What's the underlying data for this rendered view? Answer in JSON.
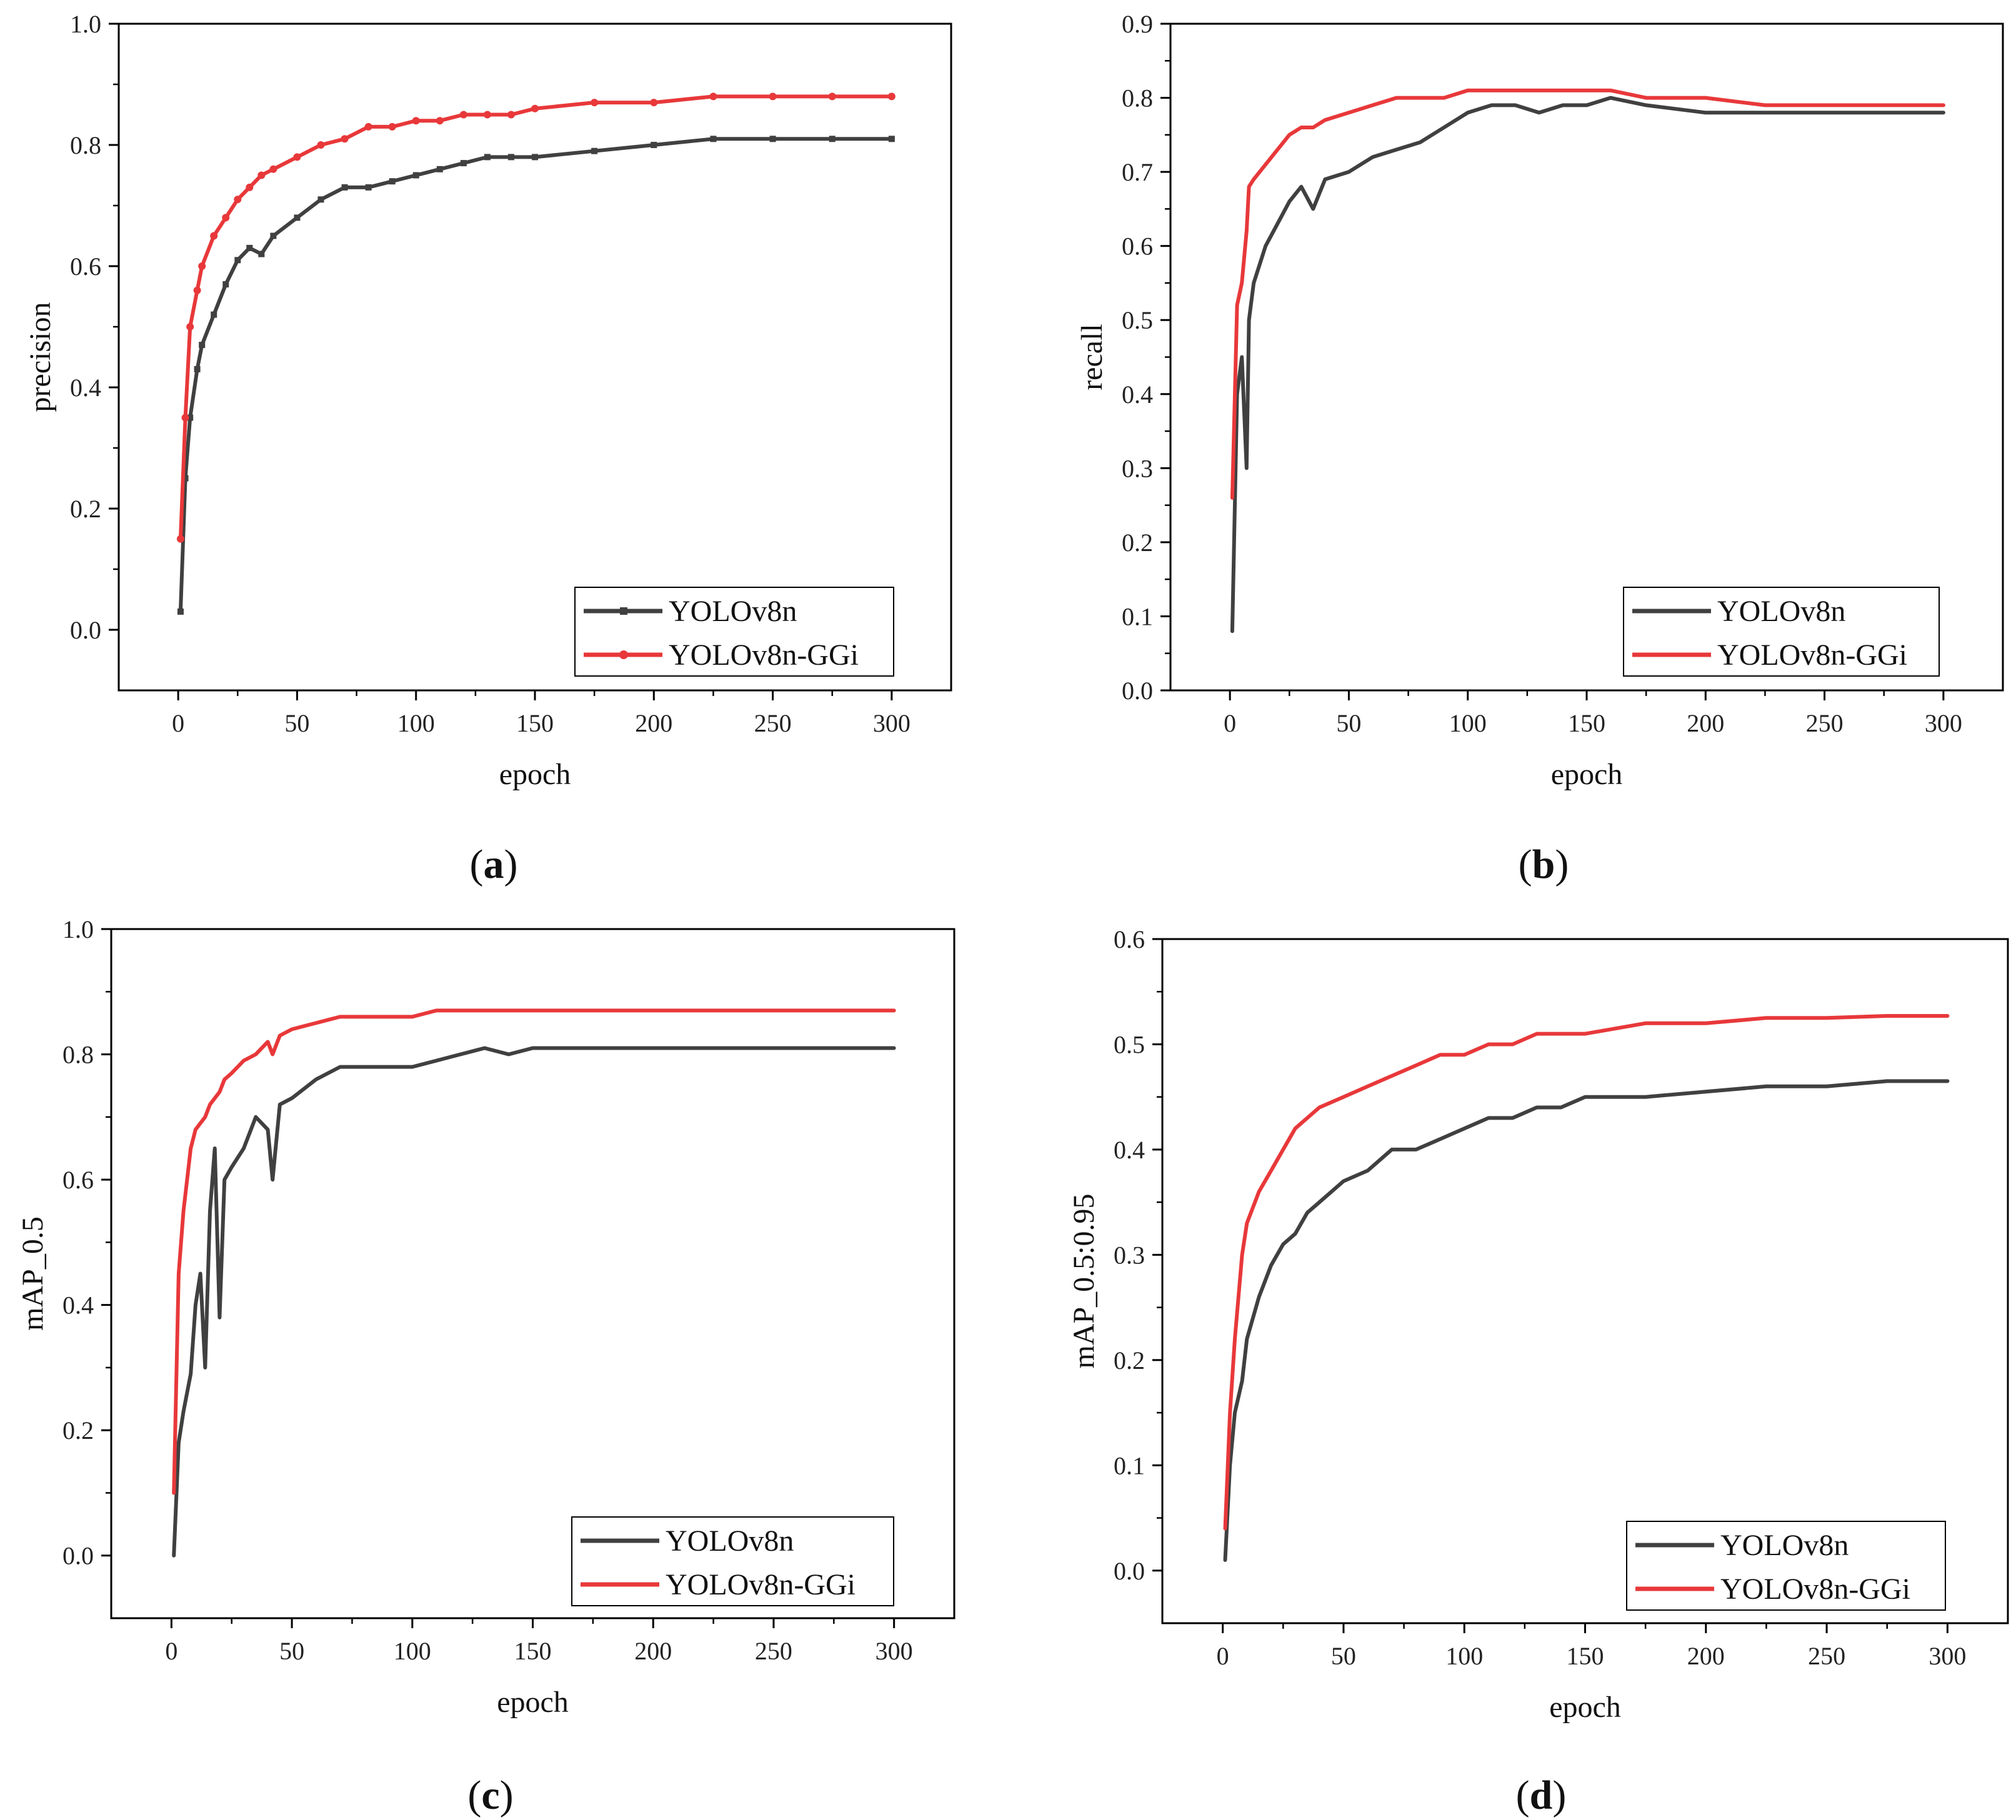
{
  "colors": {
    "yolov8n": "#404040",
    "yolov8n_ggi": "#e8383a"
  },
  "chart_data": [
    {
      "type": "line",
      "caption": "a",
      "xlabel": "epoch",
      "ylabel": "precision",
      "xlim": [
        -25,
        325
      ],
      "ylim": [
        -0.1,
        1.0
      ],
      "xticks": [
        0,
        50,
        100,
        150,
        200,
        250,
        300
      ],
      "yticks": [
        0.0,
        0.2,
        0.4,
        0.6,
        0.8,
        1.0
      ],
      "xticklabels": [
        "0",
        "50",
        "100",
        "150",
        "200",
        "250",
        "300"
      ],
      "yticklabels": [
        "0.0",
        "0.2",
        "0.4",
        "0.6",
        "0.8",
        "1.0"
      ],
      "legend": {
        "position": "bottom-right",
        "entries": [
          "YOLOv8n",
          "YOLOv8n-GGi"
        ]
      },
      "markers": true,
      "x": [
        1,
        3,
        5,
        8,
        10,
        15,
        20,
        25,
        30,
        35,
        40,
        50,
        60,
        70,
        80,
        90,
        100,
        110,
        120,
        130,
        140,
        150,
        175,
        200,
        225,
        250,
        275,
        300
      ],
      "series": [
        {
          "name": "YOLOv8n",
          "values": [
            0.03,
            0.25,
            0.35,
            0.43,
            0.47,
            0.52,
            0.57,
            0.61,
            0.63,
            0.62,
            0.65,
            0.68,
            0.71,
            0.73,
            0.73,
            0.74,
            0.75,
            0.76,
            0.77,
            0.78,
            0.78,
            0.78,
            0.79,
            0.8,
            0.81,
            0.81,
            0.81,
            0.81
          ]
        },
        {
          "name": "YOLOv8n-GGi",
          "values": [
            0.15,
            0.35,
            0.5,
            0.56,
            0.6,
            0.65,
            0.68,
            0.71,
            0.73,
            0.75,
            0.76,
            0.78,
            0.8,
            0.81,
            0.83,
            0.83,
            0.84,
            0.84,
            0.85,
            0.85,
            0.85,
            0.86,
            0.87,
            0.87,
            0.88,
            0.88,
            0.88,
            0.88
          ]
        }
      ]
    },
    {
      "type": "line",
      "caption": "b",
      "xlabel": "epoch",
      "ylabel": "recall",
      "xlim": [
        -25,
        325
      ],
      "ylim": [
        0.0,
        0.9
      ],
      "xticks": [
        0,
        50,
        100,
        150,
        200,
        250,
        300
      ],
      "yticks": [
        0.0,
        0.1,
        0.2,
        0.3,
        0.4,
        0.5,
        0.6,
        0.7,
        0.8,
        0.9
      ],
      "xticklabels": [
        "0",
        "50",
        "100",
        "150",
        "200",
        "250",
        "300"
      ],
      "yticklabels": [
        "0.0",
        "0.1",
        "0.2",
        "0.3",
        "0.4",
        "0.5",
        "0.6",
        "0.7",
        "0.8",
        "0.9"
      ],
      "legend": {
        "position": "bottom-right",
        "entries": [
          "YOLOv8n",
          "YOLOv8n-GGi"
        ]
      },
      "markers": false,
      "x": [
        1,
        3,
        5,
        7,
        8,
        10,
        15,
        20,
        25,
        30,
        35,
        40,
        50,
        60,
        70,
        80,
        90,
        100,
        110,
        120,
        130,
        140,
        150,
        160,
        175,
        200,
        225,
        250,
        275,
        300
      ],
      "series": [
        {
          "name": "YOLOv8n",
          "values": [
            0.08,
            0.4,
            0.45,
            0.3,
            0.5,
            0.55,
            0.6,
            0.63,
            0.66,
            0.68,
            0.65,
            0.69,
            0.7,
            0.72,
            0.73,
            0.74,
            0.76,
            0.78,
            0.79,
            0.79,
            0.78,
            0.79,
            0.79,
            0.8,
            0.79,
            0.78,
            0.78,
            0.78,
            0.78,
            0.78
          ]
        },
        {
          "name": "YOLOv8n-GGi",
          "values": [
            0.26,
            0.52,
            0.55,
            0.62,
            0.68,
            0.69,
            0.71,
            0.73,
            0.75,
            0.76,
            0.76,
            0.77,
            0.78,
            0.79,
            0.8,
            0.8,
            0.8,
            0.81,
            0.81,
            0.81,
            0.81,
            0.81,
            0.81,
            0.81,
            0.8,
            0.8,
            0.79,
            0.79,
            0.79,
            0.79
          ]
        }
      ]
    },
    {
      "type": "line",
      "caption": "c",
      "xlabel": "epoch",
      "ylabel": "mAP_0.5",
      "xlim": [
        -25,
        325
      ],
      "ylim": [
        -0.1,
        1.0
      ],
      "xticks": [
        0,
        50,
        100,
        150,
        200,
        250,
        300
      ],
      "yticks": [
        0.0,
        0.2,
        0.4,
        0.6,
        0.8,
        1.0
      ],
      "xticklabels": [
        "0",
        "50",
        "100",
        "150",
        "200",
        "250",
        "300"
      ],
      "yticklabels": [
        "0.0",
        "0.2",
        "0.4",
        "0.6",
        "0.8",
        "1.0"
      ],
      "legend": {
        "position": "bottom-right",
        "entries": [
          "YOLOv8n",
          "YOLOv8n-GGi"
        ]
      },
      "markers": false,
      "x": [
        1,
        3,
        5,
        8,
        10,
        12,
        14,
        16,
        18,
        20,
        22,
        25,
        30,
        35,
        40,
        42,
        45,
        50,
        60,
        70,
        80,
        90,
        100,
        110,
        120,
        130,
        140,
        150,
        175,
        200,
        250,
        300
      ],
      "series": [
        {
          "name": "YOLOv8n",
          "values": [
            0.0,
            0.18,
            0.23,
            0.29,
            0.4,
            0.45,
            0.3,
            0.55,
            0.65,
            0.38,
            0.6,
            0.62,
            0.65,
            0.7,
            0.68,
            0.6,
            0.72,
            0.73,
            0.76,
            0.78,
            0.78,
            0.78,
            0.78,
            0.79,
            0.8,
            0.81,
            0.8,
            0.81,
            0.81,
            0.81,
            0.81,
            0.81
          ]
        },
        {
          "name": "YOLOv8n-GGi",
          "values": [
            0.1,
            0.45,
            0.55,
            0.65,
            0.68,
            0.69,
            0.7,
            0.72,
            0.73,
            0.74,
            0.76,
            0.77,
            0.79,
            0.8,
            0.82,
            0.8,
            0.83,
            0.84,
            0.85,
            0.86,
            0.86,
            0.86,
            0.86,
            0.87,
            0.87,
            0.87,
            0.87,
            0.87,
            0.87,
            0.87,
            0.87,
            0.87
          ]
        }
      ]
    },
    {
      "type": "line",
      "caption": "d",
      "xlabel": "epoch",
      "ylabel": "mAP_0.5:0.95",
      "xlim": [
        -25,
        325
      ],
      "ylim": [
        -0.05,
        0.6
      ],
      "xticks": [
        0,
        50,
        100,
        150,
        200,
        250,
        300
      ],
      "yticks": [
        0.0,
        0.1,
        0.2,
        0.3,
        0.4,
        0.5,
        0.6
      ],
      "xticklabels": [
        "0",
        "50",
        "100",
        "150",
        "200",
        "250",
        "300"
      ],
      "yticklabels": [
        "0.0",
        "0.1",
        "0.2",
        "0.3",
        "0.4",
        "0.5",
        "0.6"
      ],
      "legend": {
        "position": "bottom-right",
        "entries": [
          "YOLOv8n",
          "YOLOv8n-GGi"
        ]
      },
      "markers": false,
      "x": [
        1,
        3,
        5,
        8,
        10,
        15,
        20,
        25,
        30,
        35,
        40,
        50,
        60,
        70,
        80,
        90,
        100,
        110,
        120,
        130,
        140,
        150,
        175,
        200,
        225,
        250,
        275,
        300
      ],
      "series": [
        {
          "name": "YOLOv8n",
          "values": [
            0.01,
            0.1,
            0.15,
            0.18,
            0.22,
            0.26,
            0.29,
            0.31,
            0.32,
            0.34,
            0.35,
            0.37,
            0.38,
            0.4,
            0.4,
            0.41,
            0.42,
            0.43,
            0.43,
            0.44,
            0.44,
            0.45,
            0.45,
            0.455,
            0.46,
            0.46,
            0.465,
            0.465
          ]
        },
        {
          "name": "YOLOv8n-GGi",
          "values": [
            0.04,
            0.15,
            0.22,
            0.3,
            0.33,
            0.36,
            0.38,
            0.4,
            0.42,
            0.43,
            0.44,
            0.45,
            0.46,
            0.47,
            0.48,
            0.49,
            0.49,
            0.5,
            0.5,
            0.51,
            0.51,
            0.51,
            0.52,
            0.52,
            0.525,
            0.525,
            0.527,
            0.527
          ]
        }
      ]
    }
  ]
}
